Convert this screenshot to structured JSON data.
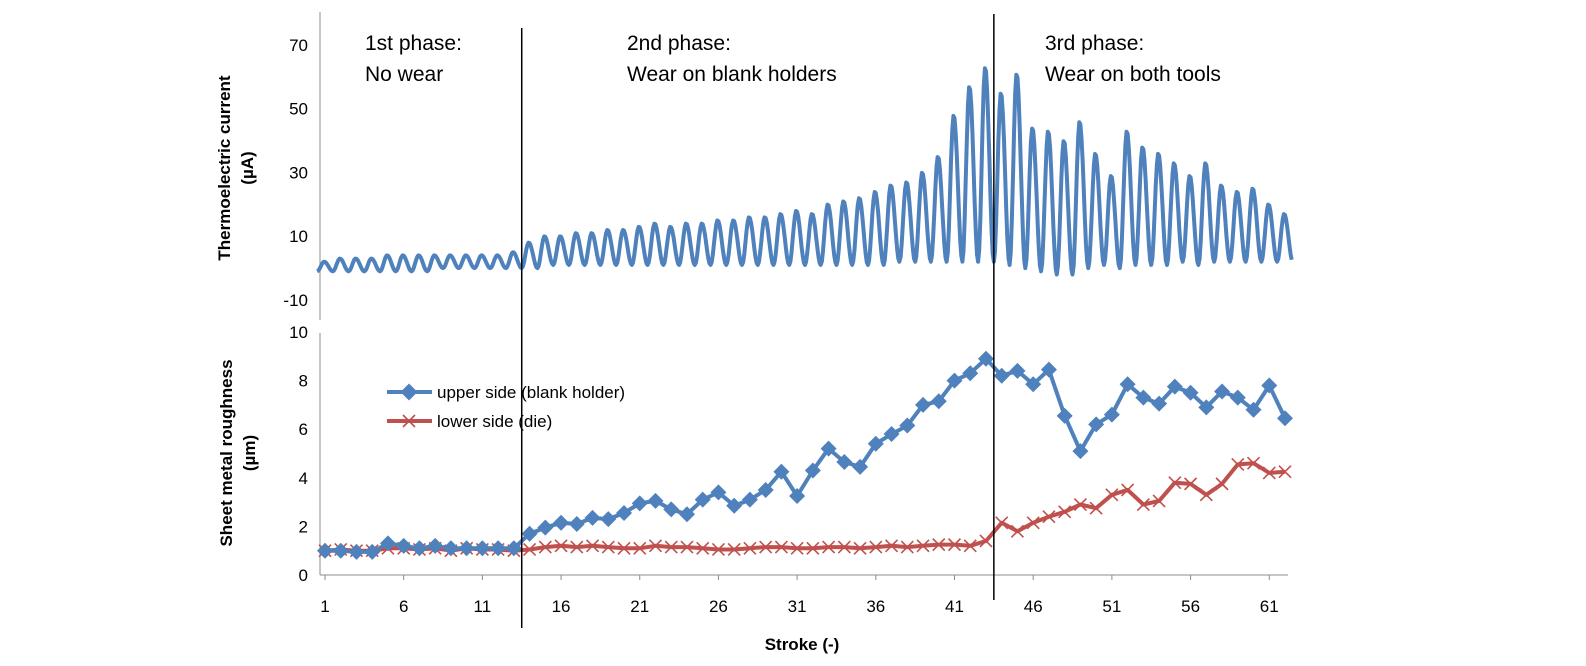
{
  "chart_data": [
    {
      "type": "line",
      "panel": "top",
      "ylabel_line1": "Thermoelectric current",
      "ylabel_line2": "(µA)",
      "ylim": [
        -10,
        80
      ],
      "yticks": [
        -10,
        10,
        30,
        50,
        70
      ],
      "series": [
        {
          "color": "#4f81bd",
          "x": [
            1,
            2,
            3,
            4,
            5,
            6,
            7,
            8,
            9,
            10,
            11,
            12,
            13,
            14,
            15,
            16,
            17,
            18,
            19,
            20,
            21,
            22,
            23,
            24,
            25,
            26,
            27,
            28,
            29,
            30,
            31,
            32,
            33,
            34,
            35,
            36,
            37,
            38,
            39,
            40,
            41,
            42,
            43,
            44,
            45,
            46,
            47,
            48,
            49,
            50,
            51,
            52,
            53,
            54,
            55,
            56,
            57,
            58,
            59,
            60,
            61,
            62
          ],
          "peak": [
            2,
            3,
            3,
            3,
            4,
            4,
            4,
            4,
            4,
            4,
            4,
            4,
            5,
            8,
            10,
            10,
            11,
            11,
            12,
            12,
            13,
            14,
            13,
            14,
            14,
            15,
            15,
            16,
            16,
            17,
            18,
            17,
            20,
            21,
            22,
            24,
            26,
            27,
            30,
            35,
            48,
            57,
            63,
            55,
            61,
            44,
            43,
            40,
            46,
            36,
            29,
            43,
            38,
            36,
            33,
            29,
            33,
            26,
            24,
            25,
            20,
            17
          ],
          "trough": [
            -1,
            -1,
            -1,
            -1,
            -1,
            -1,
            -1,
            -1,
            0,
            0,
            0,
            0,
            0,
            0,
            0,
            1,
            1,
            1,
            1,
            1,
            1,
            1,
            1,
            1,
            1,
            1,
            1,
            1,
            1,
            1,
            1,
            1,
            1,
            1,
            1,
            1,
            1,
            2,
            2,
            2,
            2,
            2,
            2,
            2,
            1,
            0,
            -1,
            -2,
            -2,
            0,
            1,
            0,
            1,
            1,
            1,
            2,
            1,
            2,
            2,
            2,
            2,
            2
          ]
        }
      ]
    },
    {
      "type": "line",
      "panel": "bottom",
      "ylabel_line1": "Sheet metal roughness",
      "ylabel_line2": "(µm)",
      "xlabel": "Stroke (-)",
      "xlim": [
        1,
        62
      ],
      "ylim": [
        0,
        10
      ],
      "yticks": [
        0,
        2,
        4,
        6,
        8,
        10
      ],
      "xticks": [
        1,
        6,
        11,
        16,
        21,
        26,
        31,
        36,
        41,
        46,
        51,
        56,
        61
      ],
      "legend_position": "upper-left",
      "series": [
        {
          "name": "upper side (blank holder)",
          "color": "#4f81bd",
          "marker": "diamond",
          "x": [
            1,
            2,
            3,
            4,
            5,
            6,
            7,
            8,
            9,
            10,
            11,
            12,
            13,
            14,
            15,
            16,
            17,
            18,
            19,
            20,
            21,
            22,
            23,
            24,
            25,
            26,
            27,
            28,
            29,
            30,
            31,
            32,
            33,
            34,
            35,
            36,
            37,
            38,
            39,
            40,
            41,
            42,
            43,
            44,
            45,
            46,
            47,
            48,
            49,
            50,
            51,
            52,
            53,
            54,
            55,
            56,
            57,
            58,
            59,
            60,
            61,
            62
          ],
          "values": [
            1.0,
            1.0,
            0.95,
            0.95,
            1.3,
            1.2,
            1.1,
            1.2,
            1.1,
            1.1,
            1.1,
            1.1,
            1.1,
            1.7,
            1.95,
            2.15,
            2.1,
            2.35,
            2.3,
            2.55,
            2.95,
            3.05,
            2.7,
            2.5,
            3.1,
            3.4,
            2.85,
            3.1,
            3.5,
            4.25,
            3.25,
            4.3,
            5.2,
            4.65,
            4.45,
            5.4,
            5.8,
            6.15,
            7.0,
            7.15,
            8.0,
            8.3,
            8.9,
            8.2,
            8.4,
            7.85,
            8.45,
            6.55,
            5.1,
            6.2,
            6.6,
            7.85,
            7.3,
            7.05,
            7.75,
            7.5,
            6.9,
            7.55,
            7.3,
            6.8,
            7.8,
            6.45
          ]
        },
        {
          "name": "lower side (die)",
          "color": "#c0504d",
          "marker": "x",
          "x": [
            1,
            2,
            3,
            4,
            5,
            6,
            7,
            8,
            9,
            10,
            11,
            12,
            13,
            14,
            15,
            16,
            17,
            18,
            19,
            20,
            21,
            22,
            23,
            24,
            25,
            26,
            27,
            28,
            29,
            30,
            31,
            32,
            33,
            34,
            35,
            36,
            37,
            38,
            39,
            40,
            41,
            42,
            43,
            44,
            45,
            46,
            47,
            48,
            49,
            50,
            51,
            52,
            53,
            54,
            55,
            56,
            57,
            58,
            59,
            60,
            61,
            62
          ],
          "values": [
            1.0,
            1.05,
            1.0,
            1.0,
            1.1,
            1.1,
            1.05,
            1.1,
            1.0,
            1.1,
            1.05,
            1.05,
            1.0,
            1.05,
            1.15,
            1.2,
            1.15,
            1.2,
            1.15,
            1.1,
            1.1,
            1.2,
            1.15,
            1.15,
            1.1,
            1.05,
            1.05,
            1.1,
            1.15,
            1.15,
            1.1,
            1.1,
            1.15,
            1.15,
            1.1,
            1.15,
            1.2,
            1.15,
            1.2,
            1.25,
            1.25,
            1.2,
            1.4,
            2.15,
            1.8,
            2.15,
            2.4,
            2.6,
            2.9,
            2.75,
            3.3,
            3.5,
            2.9,
            3.05,
            3.8,
            3.75,
            3.3,
            3.75,
            4.55,
            4.6,
            4.2,
            4.25
          ]
        }
      ]
    }
  ],
  "phases": [
    {
      "line1": "1st phase:",
      "line2": "No wear",
      "boundary_after_stroke": 13.5
    },
    {
      "line1": "2nd phase:",
      "line2": "Wear on blank holders",
      "boundary_after_stroke": 43.5
    },
    {
      "line1": "3rd phase:",
      "line2": "Wear on both tools",
      "boundary_after_stroke": null
    }
  ]
}
